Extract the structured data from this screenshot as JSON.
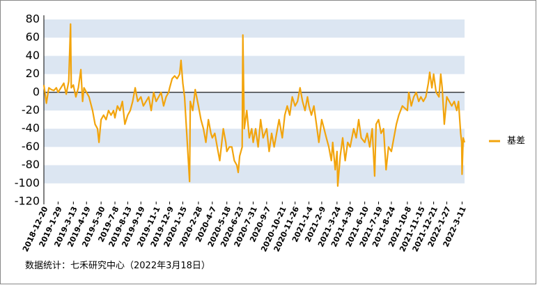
{
  "chart_data": {
    "type": "line",
    "note": "数据统计：七禾研究中心（2022年3月18日）",
    "ylim": [
      -120,
      80
    ],
    "yticks": [
      80,
      60,
      40,
      20,
      0,
      -20,
      -40,
      -60,
      -80,
      -100,
      -120
    ],
    "xlim": [
      "2018-12-20",
      "2022-3-18"
    ],
    "xticks": [
      "2018-12-20",
      "2019-1-29",
      "2019-3-13",
      "2019-4-19",
      "2019-5-30",
      "2019-7-8",
      "2019-8-13",
      "2019-9-19",
      "2019-11-1",
      "2019-12-9",
      "2020-1-15",
      "2020-2-28",
      "2020-4-7",
      "2020-5-18",
      "2020-6-23",
      "2020-7-31",
      "2020-9-7",
      "2020-10-21",
      "2020-11-26",
      "2021-1-4",
      "2021-2-9",
      "2021-3-24",
      "2021-4-30",
      "2021-6-10",
      "2021-7-19",
      "2021-8-24",
      "2021-10-8",
      "2021-11-15",
      "2021-12-21",
      "2022-1-27",
      "2022-3-11"
    ],
    "grid": "bands",
    "legend": "right",
    "x": [
      "2018-12-20",
      "2018-12-27",
      "2019-1-3",
      "2019-1-10",
      "2019-1-17",
      "2019-1-24",
      "2019-1-29",
      "2019-2-14",
      "2019-2-21",
      "2019-2-28",
      "2019-3-5",
      "2019-3-7",
      "2019-3-13",
      "2019-3-20",
      "2019-3-27",
      "2019-4-3",
      "2019-4-8",
      "2019-4-12",
      "2019-4-19",
      "2019-4-26",
      "2019-5-6",
      "2019-5-13",
      "2019-5-20",
      "2019-5-24",
      "2019-5-30",
      "2019-6-6",
      "2019-6-13",
      "2019-6-20",
      "2019-6-27",
      "2019-7-4",
      "2019-7-8",
      "2019-7-15",
      "2019-7-22",
      "2019-7-29",
      "2019-8-5",
      "2019-8-13",
      "2019-8-20",
      "2019-8-27",
      "2019-9-3",
      "2019-9-10",
      "2019-9-19",
      "2019-9-26",
      "2019-10-11",
      "2019-10-18",
      "2019-10-25",
      "2019-11-1",
      "2019-11-8",
      "2019-11-15",
      "2019-11-22",
      "2019-11-29",
      "2019-12-6",
      "2019-12-9",
      "2019-12-16",
      "2019-12-23",
      "2019-12-30",
      "2020-1-6",
      "2020-1-10",
      "2020-1-15",
      "2020-1-20",
      "2020-2-3",
      "2020-2-5",
      "2020-2-12",
      "2020-2-19",
      "2020-2-28",
      "2020-3-6",
      "2020-3-13",
      "2020-3-20",
      "2020-3-27",
      "2020-4-3",
      "2020-4-7",
      "2020-4-14",
      "2020-4-21",
      "2020-4-28",
      "2020-5-8",
      "2020-5-15",
      "2020-5-18",
      "2020-5-25",
      "2020-6-1",
      "2020-6-8",
      "2020-6-15",
      "2020-6-19",
      "2020-6-23",
      "2020-6-30",
      "2020-7-2",
      "2020-7-6",
      "2020-7-13",
      "2020-7-20",
      "2020-7-27",
      "2020-7-31",
      "2020-8-7",
      "2020-8-14",
      "2020-8-21",
      "2020-8-28",
      "2020-9-7",
      "2020-9-14",
      "2020-9-21",
      "2020-9-28",
      "2020-10-12",
      "2020-10-21",
      "2020-10-28",
      "2020-11-4",
      "2020-11-11",
      "2020-11-18",
      "2020-11-26",
      "2020-12-3",
      "2020-12-10",
      "2020-12-17",
      "2020-12-24",
      "2020-12-31",
      "2021-1-4",
      "2021-1-11",
      "2021-1-18",
      "2021-1-25",
      "2021-2-1",
      "2021-2-9",
      "2021-2-22",
      "2021-3-1",
      "2021-3-8",
      "2021-3-12",
      "2021-3-19",
      "2021-3-24",
      "2021-3-26",
      "2021-4-2",
      "2021-4-9",
      "2021-4-16",
      "2021-4-23",
      "2021-4-30",
      "2021-5-10",
      "2021-5-17",
      "2021-5-24",
      "2021-5-31",
      "2021-6-10",
      "2021-6-17",
      "2021-6-24",
      "2021-7-1",
      "2021-7-8",
      "2021-7-12",
      "2021-7-19",
      "2021-7-26",
      "2021-8-2",
      "2021-8-9",
      "2021-8-16",
      "2021-8-24",
      "2021-8-31",
      "2021-9-7",
      "2021-9-14",
      "2021-9-24",
      "2021-10-8",
      "2021-10-12",
      "2021-10-19",
      "2021-10-26",
      "2021-11-2",
      "2021-11-9",
      "2021-11-15",
      "2021-11-22",
      "2021-11-29",
      "2021-12-6",
      "2021-12-10",
      "2021-12-16",
      "2021-12-21",
      "2021-12-28",
      "2022-1-5",
      "2022-1-10",
      "2022-1-14",
      "2022-1-20",
      "2022-1-27",
      "2022-2-10",
      "2022-2-17",
      "2022-2-24",
      "2022-3-1",
      "2022-3-7",
      "2022-3-10",
      "2022-3-11",
      "2022-3-14",
      "2022-3-18"
    ],
    "series": [
      {
        "name": "基差",
        "color": "#f2a40c",
        "values": [
          8,
          -12,
          5,
          3,
          2,
          5,
          0,
          10,
          -2,
          12,
          75,
          5,
          8,
          -5,
          5,
          25,
          -10,
          5,
          0,
          -5,
          -20,
          -35,
          -40,
          -55,
          -30,
          -25,
          -30,
          -20,
          -25,
          -20,
          -28,
          -15,
          -20,
          -10,
          -35,
          -25,
          -20,
          -10,
          5,
          -10,
          -5,
          -15,
          -5,
          -20,
          0,
          -10,
          -5,
          0,
          -15,
          -5,
          0,
          5,
          15,
          18,
          15,
          20,
          35,
          10,
          -5,
          -98,
          -10,
          -20,
          3,
          -15,
          -30,
          -40,
          -55,
          -30,
          -45,
          -50,
          -45,
          -60,
          -75,
          -40,
          -55,
          -65,
          -60,
          -60,
          -75,
          -80,
          -88,
          -70,
          -60,
          63,
          -40,
          -20,
          -50,
          -40,
          -55,
          -40,
          -60,
          -30,
          -50,
          -40,
          -65,
          -45,
          -60,
          -30,
          -50,
          -25,
          -15,
          -25,
          -5,
          -15,
          -10,
          5,
          -10,
          -20,
          -5,
          -15,
          -25,
          -15,
          -35,
          -55,
          -30,
          -50,
          -60,
          -75,
          -55,
          -85,
          -65,
          -103,
          -70,
          -50,
          -75,
          -55,
          -60,
          -40,
          -50,
          -30,
          -50,
          -55,
          -45,
          -60,
          -40,
          -92,
          -35,
          -30,
          -45,
          -40,
          -85,
          -60,
          -65,
          -50,
          -35,
          -25,
          -15,
          -20,
          0,
          -15,
          -5,
          0,
          -10,
          -5,
          -10,
          -5,
          10,
          22,
          5,
          20,
          0,
          -5,
          20,
          5,
          -35,
          -5,
          -15,
          -10,
          -20,
          -10,
          -45,
          -55,
          -90,
          -50,
          -55
        ]
      }
    ]
  }
}
